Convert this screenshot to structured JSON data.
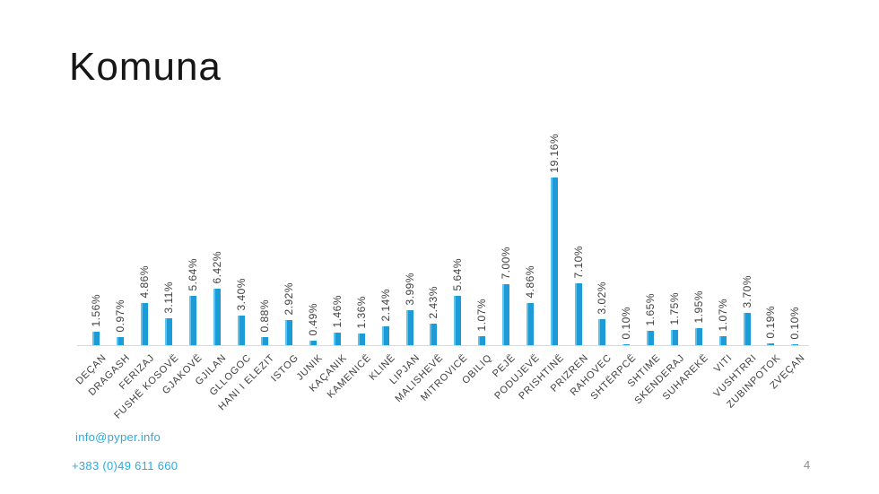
{
  "title": "Komuna",
  "chart_data": {
    "type": "bar",
    "title": "Komuna",
    "xlabel": "",
    "ylabel": "",
    "ylim": [
      0,
      20
    ],
    "grid": false,
    "legend": "none",
    "value_suffix": "%",
    "bar_color": "#1b9cd8",
    "bar_highlight_color": "#5fc2ea",
    "categories": [
      "DEÇAN",
      "DRAGASH",
      "FERIZAJ",
      "FUSHË KOSOVË",
      "GJAKOVË",
      "GJILAN",
      "GLLOGOC",
      "HANI I ELEZIT",
      "ISTOG",
      "JUNIK",
      "KAÇANIK",
      "KAMENICË",
      "KLINË",
      "LIPJAN",
      "MALISHEVË",
      "MITROVICË",
      "OBILIQ",
      "PEJË",
      "PODUJEVË",
      "PRISHTINË",
      "PRIZREN",
      "RAHOVEC",
      "SHTËRPCË",
      "SHTIME",
      "SKENDERAJ",
      "SUHAREKË",
      "VITI",
      "VUSHTRRI",
      "ZUBINPOTOK",
      "ZVEÇAN"
    ],
    "values": [
      1.56,
      0.97,
      4.86,
      3.11,
      5.64,
      6.42,
      3.4,
      0.88,
      2.92,
      0.49,
      1.46,
      1.36,
      2.14,
      3.99,
      2.43,
      5.64,
      1.07,
      7.0,
      4.86,
      19.16,
      7.1,
      3.02,
      0.1,
      1.65,
      1.75,
      1.95,
      1.07,
      3.7,
      0.19,
      0.1
    ]
  },
  "footer": {
    "email": "info@pyper.info",
    "phone": "+383 (0)49 611 660",
    "page_number": "4"
  },
  "colors": {
    "accent_blue": "#29abe2",
    "bar_blue": "#1b9cd8",
    "label_text": "#3f3f3f",
    "axis_gray": "#d9d9d9",
    "page_number_gray": "#8c8c8c",
    "title_black": "#161616"
  }
}
